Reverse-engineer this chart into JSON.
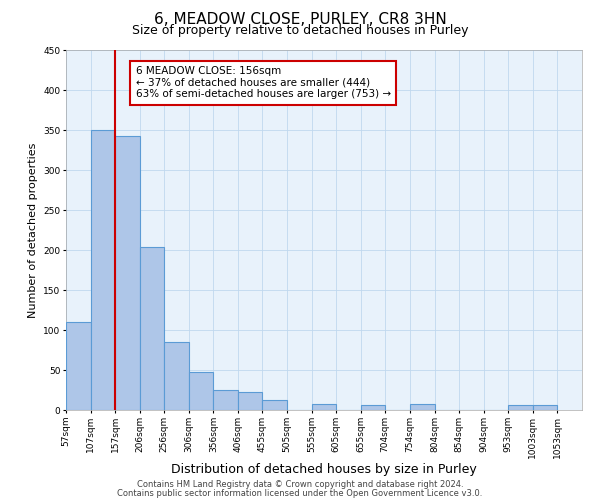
{
  "title": "6, MEADOW CLOSE, PURLEY, CR8 3HN",
  "subtitle": "Size of property relative to detached houses in Purley",
  "xlabel": "Distribution of detached houses by size in Purley",
  "ylabel": "Number of detached properties",
  "bar_left_edges": [
    57,
    107,
    157,
    206,
    256,
    306,
    356,
    406,
    455,
    505,
    555,
    605,
    655,
    704,
    754,
    804,
    854,
    904,
    953,
    1003
  ],
  "bar_heights": [
    110,
    350,
    343,
    204,
    85,
    47,
    25,
    22,
    12,
    0,
    7,
    0,
    6,
    0,
    7,
    0,
    0,
    0,
    6,
    6
  ],
  "bar_widths": [
    50,
    50,
    49,
    50,
    50,
    50,
    50,
    49,
    50,
    50,
    50,
    50,
    49,
    50,
    50,
    50,
    50,
    49,
    50,
    50
  ],
  "bar_color": "#aec6e8",
  "bar_edgecolor": "#5b9bd5",
  "bar_linewidth": 0.8,
  "vline_x": 157,
  "vline_color": "#cc0000",
  "vline_linewidth": 1.5,
  "annotation_line1": "6 MEADOW CLOSE: 156sqm",
  "annotation_line2": "← 37% of detached houses are smaller (444)",
  "annotation_line3": "63% of semi-detached houses are larger (753) →",
  "annotation_fontsize": 7.5,
  "annotation_box_edgecolor": "#cc0000",
  "annotation_box_facecolor": "white",
  "xlim": [
    57,
    1103
  ],
  "ylim": [
    0,
    450
  ],
  "yticks": [
    0,
    50,
    100,
    150,
    200,
    250,
    300,
    350,
    400,
    450
  ],
  "xtick_labels": [
    "57sqm",
    "107sqm",
    "157sqm",
    "206sqm",
    "256sqm",
    "306sqm",
    "356sqm",
    "406sqm",
    "455sqm",
    "505sqm",
    "555sqm",
    "605sqm",
    "655sqm",
    "704sqm",
    "754sqm",
    "804sqm",
    "854sqm",
    "904sqm",
    "953sqm",
    "1003sqm",
    "1053sqm"
  ],
  "xtick_positions": [
    57,
    107,
    157,
    206,
    256,
    306,
    356,
    406,
    455,
    505,
    555,
    605,
    655,
    704,
    754,
    804,
    854,
    904,
    953,
    1003,
    1053
  ],
  "grid_color": "#c0d8ee",
  "grid_linewidth": 0.6,
  "background_color": "#e8f2fb",
  "footer_line1": "Contains HM Land Registry data © Crown copyright and database right 2024.",
  "footer_line2": "Contains public sector information licensed under the Open Government Licence v3.0.",
  "title_fontsize": 11,
  "subtitle_fontsize": 9,
  "xlabel_fontsize": 9,
  "ylabel_fontsize": 8,
  "tick_fontsize": 6.5,
  "footer_fontsize": 6
}
